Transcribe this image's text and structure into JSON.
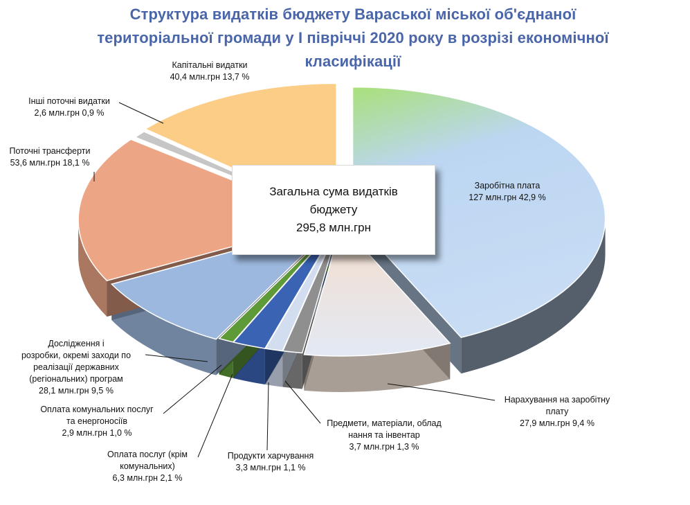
{
  "title_lines": [
    "Структура видатків бюджету Вараської міської об'єднаної",
    "територіальної громади у І півріччі 2020 року в розрізі економічної",
    "класифікації"
  ],
  "center": {
    "line1": "Загальна  сума видатків",
    "line2": "бюджету",
    "line3": "295,8 млн.грн"
  },
  "chart_data": {
    "type": "pie",
    "title": "Структура видатків бюджету Вараської міської об'єднаної територіальної громади у І півріччі 2020 року в розрізі економічної класифікації",
    "total_label": "295,8 млн.грн",
    "slices": [
      {
        "name": "Заробітна плата",
        "value": 127,
        "percent": 42.9,
        "value_label": "127 млн.грн  42,9 %",
        "color": "#b9d3f0"
      },
      {
        "name": "Нарахування на заробітну плату",
        "value": 27.9,
        "percent": 9.4,
        "value_label": "27,9 млн.грн   9,4 %",
        "color": "#eadbd0"
      },
      {
        "name": "Предмети, матеріали, обладнання та інвентар",
        "value": 3.7,
        "percent": 1.3,
        "value_label": "3,7 млн.грн  1,3 %",
        "color": "#8f8f8f"
      },
      {
        "name": "Продукти харчування",
        "value": 3.3,
        "percent": 1.1,
        "value_label": "3,3 млн.грн 1,1 %",
        "color": "#d2ddf0"
      },
      {
        "name": "Оплата послуг (крім комунальних)",
        "value": 6.3,
        "percent": 2.1,
        "value_label": "6,3 млн.грн 2,1 %",
        "color": "#3a63b3"
      },
      {
        "name": "Оплата комунальних послуг та енергоносіїв",
        "value": 2.9,
        "percent": 1.0,
        "value_label": "2,9 млн.грн 1,0 %",
        "color": "#5f9a38"
      },
      {
        "name": "Дослідження і розробки, окремі заходи по реалізації державних (регіональних) програм",
        "value": 28.1,
        "percent": 9.5,
        "value_label": "28,1 млн.грн  9,5 %",
        "color": "#9cb8de"
      },
      {
        "name": "Поточні трансферти",
        "value": 53.6,
        "percent": 18.1,
        "value_label": "53,6 млн.грн 18,1 %",
        "color": "#eca686"
      },
      {
        "name": "Інші поточні видатки",
        "value": 2.6,
        "percent": 0.9,
        "value_label": "2,6 млн.грн 0,9 %",
        "color": "#c6c6c6"
      },
      {
        "name": "Капітальні видатки",
        "value": 40.4,
        "percent": 13.7,
        "value_label": "40,4 млн.грн  13,7 %",
        "color": "#fbcd86"
      }
    ]
  },
  "labels": [
    {
      "lines": [
        "Капітальні видатки",
        "40,4 млн.грн  13,7 %"
      ]
    },
    {
      "lines": [
        "Інші поточні видатки",
        "2,6 млн.грн 0,9 %"
      ]
    },
    {
      "lines": [
        "Поточні трансферти",
        "53,6 млн.грн 18,1 %"
      ]
    },
    {
      "lines": [
        "Заробітна плата",
        "127 млн.грн  42,9 %"
      ]
    },
    {
      "lines": [
        "Дослідження і",
        "розробки, окремі заходи по",
        "реалізації державних",
        "(регіональних) програм",
        "28,1 млн.грн  9,5 %"
      ]
    },
    {
      "lines": [
        "Оплата комунальних послуг",
        "та енергоносіїв",
        "2,9 млн.грн 1,0 %"
      ]
    },
    {
      "lines": [
        "Оплата послуг (крім",
        "комунальних)",
        "6,3 млн.грн 2,1 %"
      ]
    },
    {
      "lines": [
        "Продукти харчування",
        "3,3 млн.грн 1,1 %"
      ]
    },
    {
      "lines": [
        "Предмети, матеріали, облад",
        "нання та інвентар",
        "3,7 млн.грн  1,3 %"
      ]
    },
    {
      "lines": [
        "Нарахування на заробітну",
        "плату",
        "27,9 млн.грн   9,4 %"
      ]
    }
  ]
}
